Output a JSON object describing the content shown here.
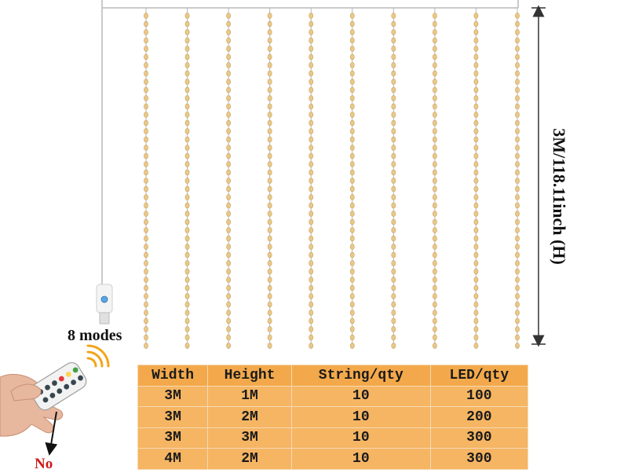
{
  "diagram": {
    "mode_label": "8 modes",
    "height_label": "3M/118.11inch (H)",
    "no_label": "No"
  },
  "product": {
    "string_count": 10,
    "colors": {
      "led": "#e8c98a",
      "led_outline": "#c9a25c",
      "wire": "#b8b8b8",
      "arrow": "#333333",
      "signal": "#f2a51a",
      "no_text": "#d01818"
    }
  },
  "remote": {
    "buttons": 12,
    "colors": [
      "#e53935",
      "#ffd54f",
      "#43a047"
    ]
  },
  "spec_table": {
    "headers": [
      "Width",
      "Height",
      "String/qty",
      "LED/qty"
    ],
    "rows": [
      [
        "3M",
        "1M",
        "10",
        "100"
      ],
      [
        "3M",
        "2M",
        "10",
        "200"
      ],
      [
        "3M",
        "3M",
        "10",
        "300"
      ],
      [
        "4M",
        "2M",
        "10",
        "300"
      ]
    ],
    "colors": {
      "header": "#f3a94b",
      "cell": "#f5b563",
      "border": "#f6d9b4"
    }
  }
}
